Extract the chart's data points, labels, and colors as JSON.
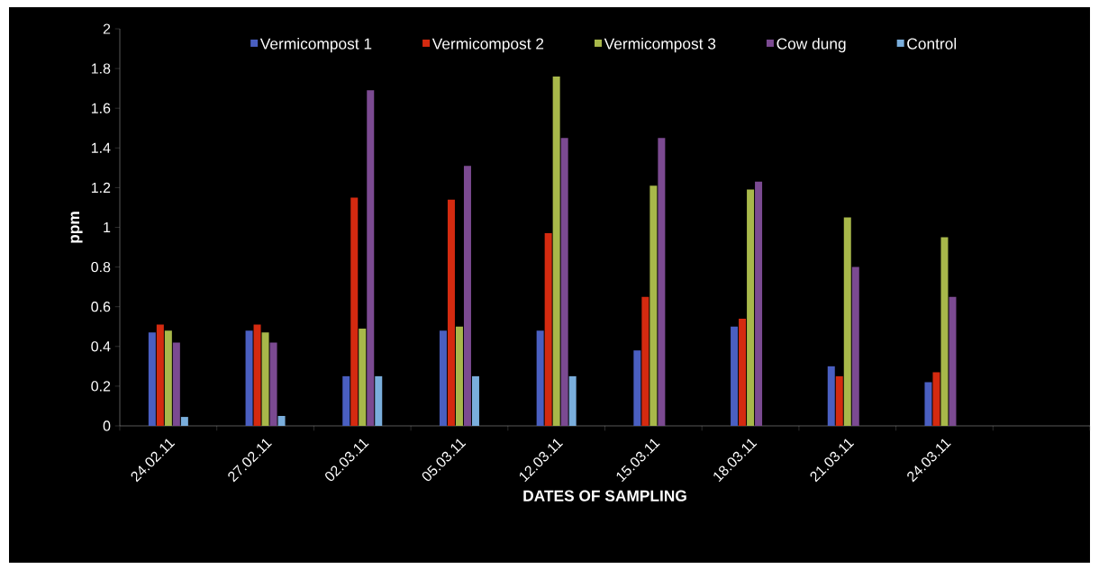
{
  "chart_data": {
    "type": "bar",
    "xlabel": "DATES OF SAMPLING",
    "ylabel": "ppm",
    "categories": [
      "24.02.11",
      "27.02.11",
      "02.03.11",
      "05.03.11",
      "12.03.11",
      "15.03.11",
      "18.03.11",
      "21.03.11",
      "24.03.11",
      null
    ],
    "series": [
      {
        "name": "Vermicompost 1",
        "color": "#4a5fc1",
        "values": [
          0.47,
          0.48,
          0.25,
          0.48,
          0.48,
          0.38,
          0.5,
          0.3,
          0.22,
          null
        ]
      },
      {
        "name": "Vermicompost 2",
        "color": "#d42a10",
        "values": [
          0.51,
          0.51,
          1.15,
          1.14,
          0.97,
          0.65,
          0.54,
          0.25,
          0.27,
          null
        ]
      },
      {
        "name": "Vermicompost 3",
        "color": "#a8b84a",
        "values": [
          0.48,
          0.47,
          0.49,
          0.5,
          1.76,
          1.21,
          1.19,
          1.05,
          0.95,
          null
        ]
      },
      {
        "name": "Cow dung",
        "color": "#7b4a91",
        "values": [
          0.42,
          0.42,
          1.69,
          1.31,
          1.45,
          1.45,
          1.23,
          0.8,
          0.65,
          null
        ]
      },
      {
        "name": "Control",
        "color": "#7aaedc",
        "values": [
          0.045,
          0.05,
          0.25,
          0.25,
          0.25,
          0,
          0,
          0,
          0,
          null
        ]
      }
    ],
    "ylim": [
      0,
      2
    ],
    "yticks": [
      0,
      0.2,
      0.4,
      0.6,
      0.8,
      1,
      1.2,
      1.4,
      1.6,
      1.8,
      2
    ],
    "legend": "top"
  }
}
